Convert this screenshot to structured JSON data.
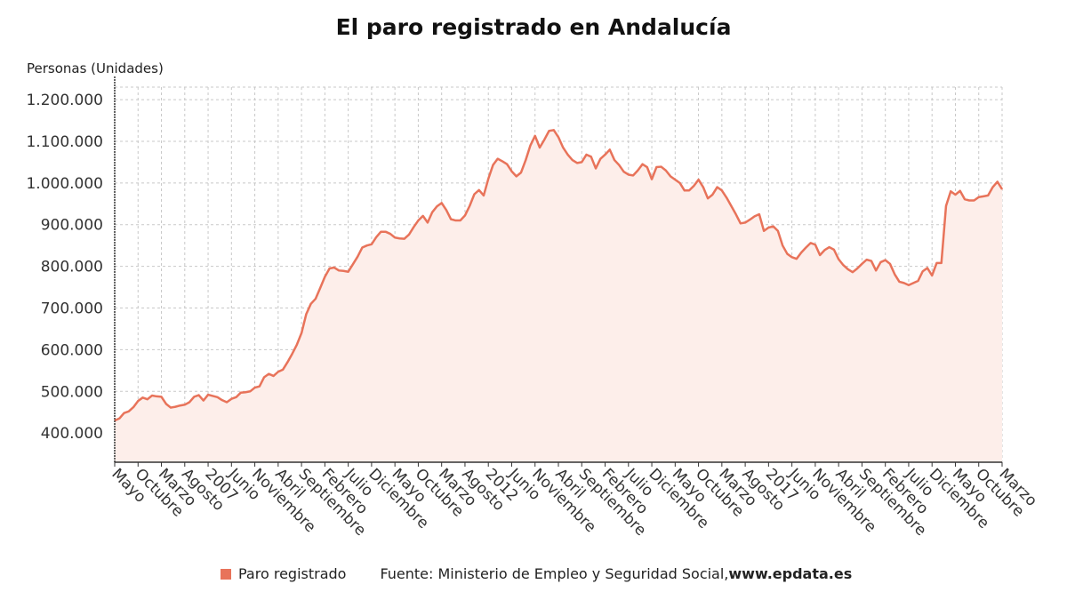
{
  "header": {
    "title": "El paro registrado en Andalucía",
    "y_unit": "Personas (Unidades)"
  },
  "legend": {
    "label": "Paro registrado",
    "source_text": "Fuente: Ministerio de Empleo y Seguridad Social, ",
    "source_site": "www.epdata.es"
  },
  "colors": {
    "line": "#e8735a",
    "fill": "#fdeeea",
    "grid": "#c8c8c8",
    "axis": "#333333"
  },
  "chart_data": {
    "type": "area",
    "title": "El paro registrado en Andalucía",
    "ylabel": "Personas (Unidades)",
    "xlabel": "",
    "ylim": [
      330000,
      1230000
    ],
    "yticks": [
      400000,
      500000,
      600000,
      700000,
      800000,
      900000,
      1000000,
      1100000,
      1200000
    ],
    "ytick_labels": [
      "400.000",
      "500.000",
      "600.000",
      "700.000",
      "800.000",
      "900.000",
      "1.000.000",
      "1.100.000",
      "1.200.000"
    ],
    "start": "2005-05",
    "x_tick_labels": [
      {
        "date": "2005-05",
        "label": "Mayo"
      },
      {
        "date": "2005-10",
        "label": "Octubre"
      },
      {
        "date": "2006-03",
        "label": "Marzo"
      },
      {
        "date": "2006-08",
        "label": "Agosto"
      },
      {
        "date": "2007-01",
        "label": "2007"
      },
      {
        "date": "2007-06",
        "label": "Junio"
      },
      {
        "date": "2007-11",
        "label": "Noviembre"
      },
      {
        "date": "2008-04",
        "label": "Abril"
      },
      {
        "date": "2008-09",
        "label": "Septiembre"
      },
      {
        "date": "2009-02",
        "label": "Febrero"
      },
      {
        "date": "2009-07",
        "label": "Julio"
      },
      {
        "date": "2009-12",
        "label": "Diciembre"
      },
      {
        "date": "2010-05",
        "label": "Mayo"
      },
      {
        "date": "2010-10",
        "label": "Octubre"
      },
      {
        "date": "2011-03",
        "label": "Marzo"
      },
      {
        "date": "2011-08",
        "label": "Agosto"
      },
      {
        "date": "2012-01",
        "label": "2012"
      },
      {
        "date": "2012-06",
        "label": "Junio"
      },
      {
        "date": "2012-11",
        "label": "Noviembre"
      },
      {
        "date": "2013-04",
        "label": "Abril"
      },
      {
        "date": "2013-09",
        "label": "Septiembre"
      },
      {
        "date": "2014-02",
        "label": "Febrero"
      },
      {
        "date": "2014-07",
        "label": "Julio"
      },
      {
        "date": "2014-12",
        "label": "Diciembre"
      },
      {
        "date": "2015-05",
        "label": "Mayo"
      },
      {
        "date": "2015-10",
        "label": "Octubre"
      },
      {
        "date": "2016-03",
        "label": "Marzo"
      },
      {
        "date": "2016-08",
        "label": "Agosto"
      },
      {
        "date": "2017-01",
        "label": "2017"
      },
      {
        "date": "2017-06",
        "label": "Junio"
      },
      {
        "date": "2017-11",
        "label": "Noviembre"
      },
      {
        "date": "2018-04",
        "label": "Abril"
      },
      {
        "date": "2018-09",
        "label": "Septiembre"
      },
      {
        "date": "2019-02",
        "label": "Febrero"
      },
      {
        "date": "2019-07",
        "label": "Julio"
      },
      {
        "date": "2019-12",
        "label": "Diciembre"
      },
      {
        "date": "2020-05",
        "label": "Mayo"
      },
      {
        "date": "2020-10",
        "label": "Octubre"
      },
      {
        "date": "2021-03",
        "label": "Marzo"
      }
    ],
    "series": [
      {
        "name": "Paro registrado",
        "values": [
          430000,
          435000,
          448000,
          452000,
          462000,
          477000,
          485000,
          481000,
          490000,
          488000,
          487000,
          470000,
          461000,
          463000,
          466000,
          468000,
          474000,
          487000,
          491000,
          478000,
          492000,
          489000,
          486000,
          479000,
          474000,
          482000,
          486000,
          497000,
          498000,
          500000,
          509000,
          512000,
          534000,
          542000,
          537000,
          547000,
          552000,
          570000,
          590000,
          612000,
          640000,
          685000,
          710000,
          722000,
          748000,
          775000,
          795000,
          797000,
          790000,
          789000,
          787000,
          805000,
          823000,
          845000,
          850000,
          853000,
          870000,
          883000,
          883000,
          878000,
          869000,
          867000,
          866000,
          876000,
          894000,
          910000,
          921000,
          905000,
          930000,
          944000,
          952000,
          935000,
          913000,
          910000,
          910000,
          922000,
          945000,
          973000,
          983000,
          970000,
          1010000,
          1043000,
          1058000,
          1052000,
          1045000,
          1028000,
          1016000,
          1025000,
          1055000,
          1090000,
          1113000,
          1085000,
          1104000,
          1125000,
          1127000,
          1110000,
          1085000,
          1068000,
          1055000,
          1048000,
          1050000,
          1068000,
          1063000,
          1035000,
          1058000,
          1068000,
          1080000,
          1055000,
          1043000,
          1027000,
          1020000,
          1018000,
          1030000,
          1045000,
          1038000,
          1009000,
          1038000,
          1039000,
          1030000,
          1016000,
          1008000,
          1000000,
          982000,
          982000,
          993000,
          1008000,
          990000,
          963000,
          972000,
          990000,
          982000,
          965000,
          945000,
          925000,
          903000,
          905000,
          912000,
          920000,
          925000,
          885000,
          893000,
          896000,
          885000,
          850000,
          830000,
          822000,
          818000,
          833000,
          845000,
          856000,
          852000,
          827000,
          839000,
          846000,
          840000,
          817000,
          803000,
          793000,
          786000,
          795000,
          806000,
          816000,
          813000,
          790000,
          810000,
          815000,
          806000,
          781000,
          763000,
          760000,
          755000,
          760000,
          765000,
          788000,
          796000,
          778000,
          808000,
          808000,
          945000,
          980000,
          972000,
          981000,
          961000,
          958000,
          958000,
          966000,
          968000,
          970000,
          990000,
          1003000,
          985000
        ]
      }
    ]
  }
}
